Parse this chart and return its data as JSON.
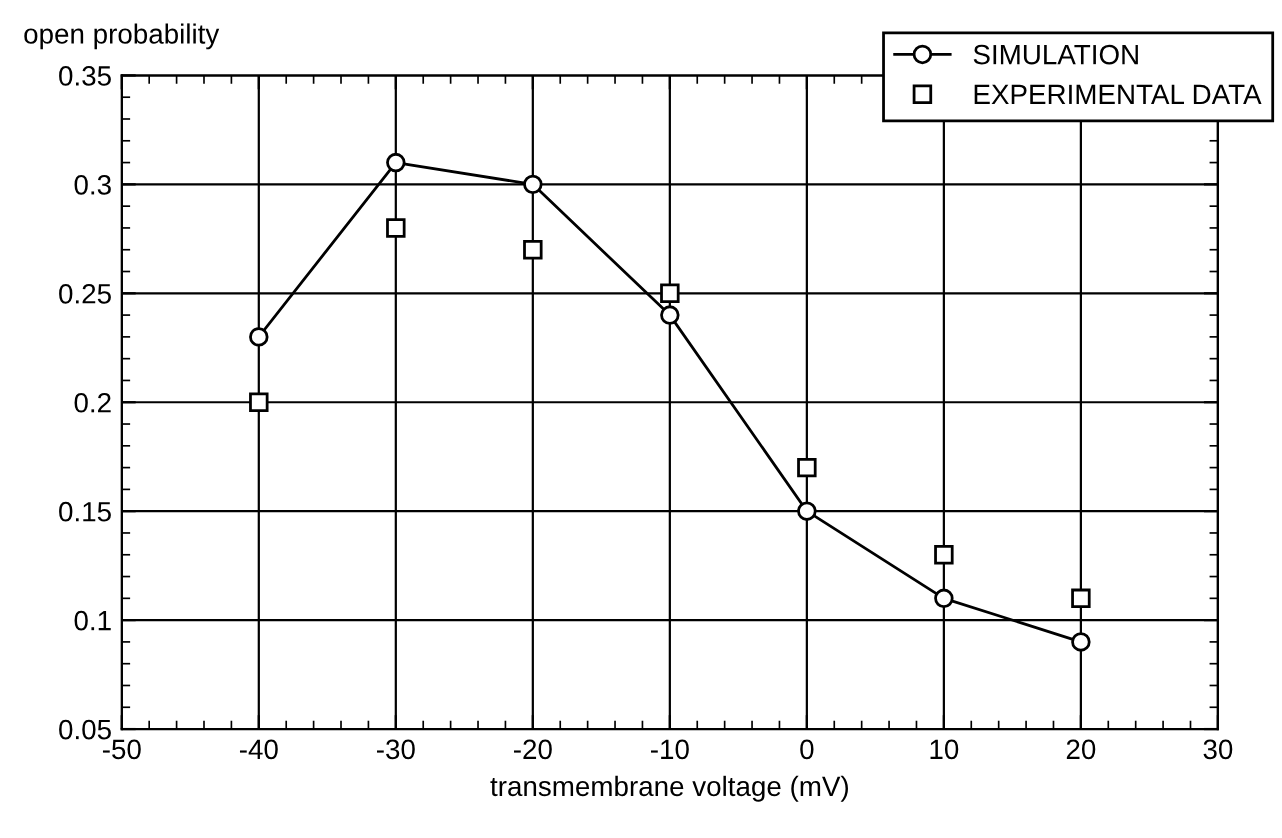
{
  "chart_data": {
    "type": "line",
    "xlabel": "transmembrane voltage (mV)",
    "ylabel": "open probability",
    "x": [
      -40,
      -30,
      -20,
      -10,
      0,
      10,
      20
    ],
    "series": [
      {
        "name": "SIMULATION",
        "color": "#000000",
        "marker": "circle",
        "values": [
          0.23,
          0.31,
          0.3,
          0.24,
          0.15,
          0.11,
          0.09
        ]
      },
      {
        "name": "EXPERIMENTAL DATA",
        "type": "scatter",
        "color": "#000000",
        "marker": "square",
        "values": [
          0.2,
          0.28,
          0.27,
          0.25,
          0.17,
          0.13,
          0.11
        ]
      }
    ],
    "xlim": [
      -50,
      30
    ],
    "xticks": [
      -50,
      -40,
      -30,
      -20,
      -10,
      0,
      10,
      20,
      30
    ],
    "ylim": [
      0.05,
      0.35
    ],
    "yticks": [
      0.05,
      0.1,
      0.15,
      0.2,
      0.25,
      0.3,
      0.35
    ],
    "grid": true,
    "legend": "top right"
  }
}
